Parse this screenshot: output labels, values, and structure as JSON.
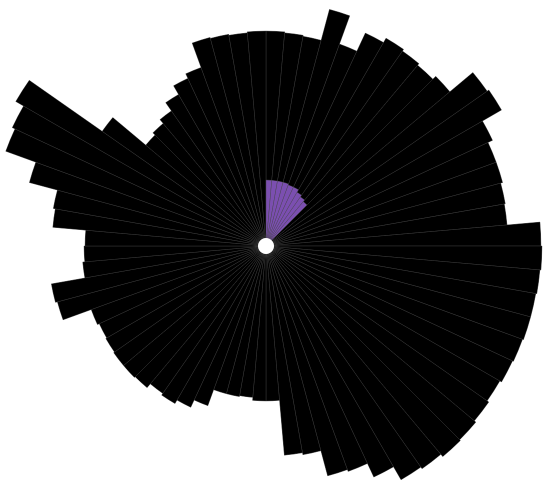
{
  "chart_data": {
    "type": "radial_bar",
    "rlim": [
      0,
      290
    ],
    "series": [
      {
        "color": "#000000",
        "values": [
          215,
          214,
          213,
          245,
          215,
          235,
          240,
          238,
          236,
          240,
          270,
          272,
          250,
          245,
          245,
          243,
          242,
          275,
          276,
          275,
          274,
          274,
          273,
          272,
          270,
          272,
          274,
          275,
          272,
          270,
          255,
          240,
          238,
          212,
          210,
          155,
          155,
          152,
          153,
          153,
          170,
          178,
          182,
          180,
          185,
          186,
          186,
          185,
          184,
          186,
          216,
          218,
          184,
          182,
          181,
          214,
          216,
          245,
          277,
          280,
          289,
          200,
          157,
          160,
          165,
          175,
          185,
          190,
          216,
          215,
          214,
          215
        ]
      },
      {
        "color": "#7b4fb0",
        "values": [
          66,
          66,
          66,
          66,
          65,
          65,
          62,
          60,
          58,
          null,
          null,
          null,
          null,
          null,
          null,
          null,
          null,
          null,
          null,
          null,
          null,
          null,
          null,
          null,
          null,
          null,
          null,
          null,
          null,
          null,
          null,
          null,
          null,
          null,
          null,
          null,
          null,
          null,
          null,
          null,
          null,
          null,
          null,
          null,
          null,
          null,
          null,
          null,
          null,
          null,
          null,
          null,
          null,
          null,
          null,
          null,
          null,
          null,
          null,
          null,
          null,
          null,
          null,
          null,
          null,
          null,
          null,
          null,
          null,
          null,
          null,
          null
        ]
      }
    ]
  }
}
